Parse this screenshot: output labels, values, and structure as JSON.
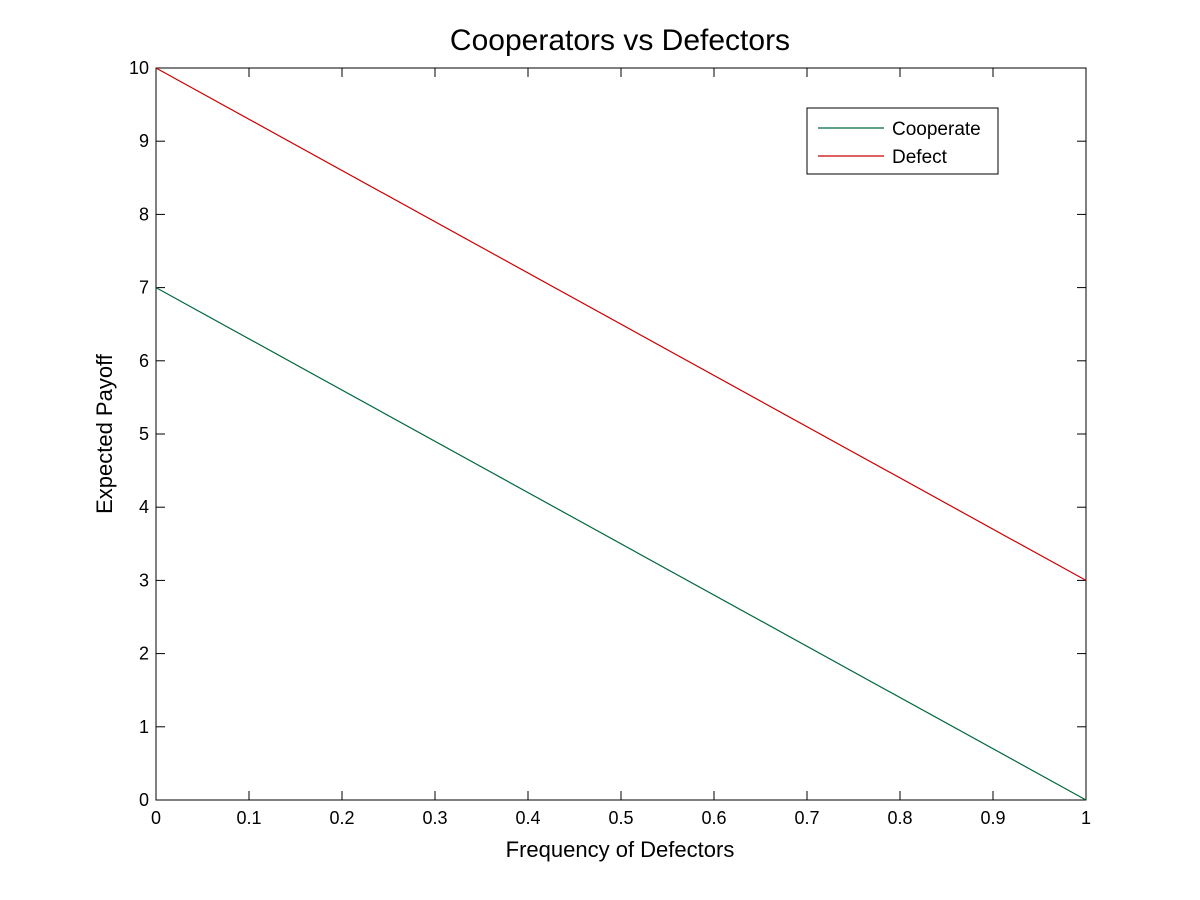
{
  "chart_data": {
    "type": "line",
    "title": "Cooperators vs Defectors",
    "xlabel": "Frequency of Defectors",
    "ylabel": "Expected Payoff",
    "xlim": [
      0,
      1
    ],
    "ylim": [
      0,
      10
    ],
    "xticks": [
      0,
      0.1,
      0.2,
      0.3,
      0.4,
      0.5,
      0.6,
      0.7,
      0.8,
      0.9,
      1
    ],
    "xtick_labels": [
      "0",
      "0.1",
      "0.2",
      "0.3",
      "0.4",
      "0.5",
      "0.6",
      "0.7",
      "0.8",
      "0.9",
      "1"
    ],
    "yticks": [
      0,
      1,
      2,
      3,
      4,
      5,
      6,
      7,
      8,
      9,
      10
    ],
    "ytick_labels": [
      "0",
      "1",
      "2",
      "3",
      "4",
      "5",
      "6",
      "7",
      "8",
      "9",
      "10"
    ],
    "grid": false,
    "legend_position": "top-right",
    "series": [
      {
        "name": "Cooperate",
        "color": "#00693c",
        "x": [
          0,
          1
        ],
        "y": [
          7,
          0
        ]
      },
      {
        "name": "Defect",
        "color": "#cc0000",
        "x": [
          0,
          1
        ],
        "y": [
          10,
          3
        ]
      }
    ]
  }
}
